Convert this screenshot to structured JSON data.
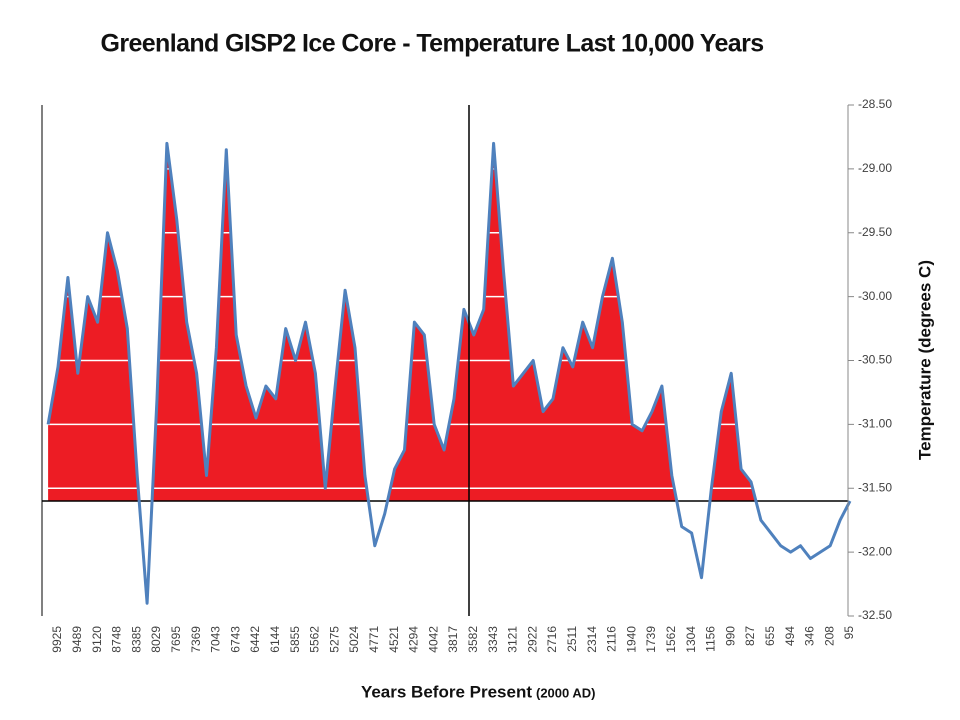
{
  "chart_data": {
    "type": "area",
    "title": "Greenland GISP2 Ice Core - Temperature  Last 10,000 Years",
    "xlabel": "Years Before Present",
    "xlabel_note": "(2000 AD)",
    "ylabel": "Temperature (degrees C)",
    "categories": [
      null,
      "9925",
      null,
      "9489",
      null,
      "9120",
      null,
      "8748",
      null,
      "8385",
      null,
      "8029",
      null,
      "7695",
      null,
      "7369",
      null,
      "7043",
      null,
      "6743",
      null,
      "6442",
      null,
      "6144",
      null,
      "5855",
      null,
      "5562",
      null,
      "5275",
      null,
      "5024",
      null,
      "4771",
      null,
      "4521",
      null,
      "4294",
      null,
      "4042",
      null,
      "3817",
      null,
      "3582",
      null,
      "3343",
      null,
      "3121",
      null,
      "2922",
      null,
      "2716",
      null,
      "2511",
      null,
      "2314",
      null,
      "2116",
      null,
      "1940",
      null,
      "1739",
      null,
      "1562",
      null,
      "1304",
      null,
      "1156",
      null,
      "990",
      null,
      "827",
      null,
      "655",
      null,
      "494",
      null,
      "346",
      null,
      "208",
      null,
      "95"
    ],
    "series": [
      {
        "name": "Temperature",
        "color": "#4f81bd",
        "fill": "#ed1c24",
        "values": [
          -31.0,
          -30.55,
          -29.85,
          -30.6,
          -30.0,
          -30.2,
          -29.5,
          -29.8,
          -30.25,
          -31.4,
          -32.4,
          -30.8,
          -28.8,
          -29.4,
          -30.2,
          -30.6,
          -31.4,
          -30.4,
          -28.85,
          -30.3,
          -30.7,
          -30.95,
          -30.7,
          -30.8,
          -30.25,
          -30.5,
          -30.2,
          -30.6,
          -31.5,
          -30.7,
          -29.95,
          -30.4,
          -31.4,
          -31.95,
          -31.7,
          -31.35,
          -31.2,
          -30.2,
          -30.3,
          -31.0,
          -31.2,
          -30.8,
          -30.1,
          -30.3,
          -30.1,
          -28.8,
          -29.8,
          -30.7,
          -30.6,
          -30.5,
          -30.9,
          -30.8,
          -30.4,
          -30.55,
          -30.2,
          -30.4,
          -30.0,
          -29.7,
          -30.2,
          -31.0,
          -31.05,
          -30.9,
          -30.7,
          -31.4,
          -31.8,
          -31.85,
          -32.2,
          -31.5,
          -30.9,
          -30.6,
          -31.35,
          -31.45,
          -31.75,
          -31.85,
          -31.95,
          -32.0,
          -31.95,
          -32.05,
          -32.0,
          -31.95,
          -31.75,
          -31.6
        ]
      }
    ],
    "reference_line": -31.6,
    "ylim": [
      -32.5,
      -28.5
    ],
    "yticks": [
      {
        "value": -32.5,
        "label": "-32.50"
      },
      {
        "value": -32.0,
        "label": "-32.00"
      },
      {
        "value": -31.5,
        "label": "-31.50"
      },
      {
        "value": -31.0,
        "label": "-31.00"
      },
      {
        "value": -30.5,
        "label": "-30.50"
      },
      {
        "value": -30.0,
        "label": "-30.00"
      },
      {
        "value": -29.5,
        "label": "-29.50"
      },
      {
        "value": -29.0,
        "label": "-29.00"
      },
      {
        "value": -28.5,
        "label": "-28.50"
      }
    ],
    "grid": true,
    "grid_color": "#ffffff"
  }
}
